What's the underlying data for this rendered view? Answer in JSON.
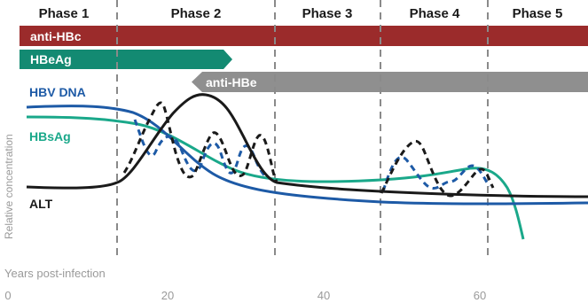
{
  "phases": [
    "Phase 1",
    "Phase 2",
    "Phase 3",
    "Phase 4",
    "Phase 5"
  ],
  "markers": {
    "anti_hbc": "anti-HBc",
    "hbeag": "HBeAg",
    "anti_hbe": "anti-HBe"
  },
  "series_labels": {
    "hbv_dna": "HBV DNA",
    "hbsag": "HBsAg",
    "alt": "ALT"
  },
  "y_axis_label": "Relative concentration",
  "x_axis_label": "Years post-infection",
  "x_ticks": [
    "0",
    "20",
    "40",
    "60"
  ],
  "colors": {
    "anti_hbc": "#9b2b2b",
    "hbeag": "#138a72",
    "anti_hbe": "#8f8f8f",
    "hbv_dna": "#1d5aa6",
    "hbsag": "#1aa88a",
    "alt": "#1a1a1a",
    "divider": "#8a8a8a",
    "axis_text": "#9a9a9a"
  }
}
